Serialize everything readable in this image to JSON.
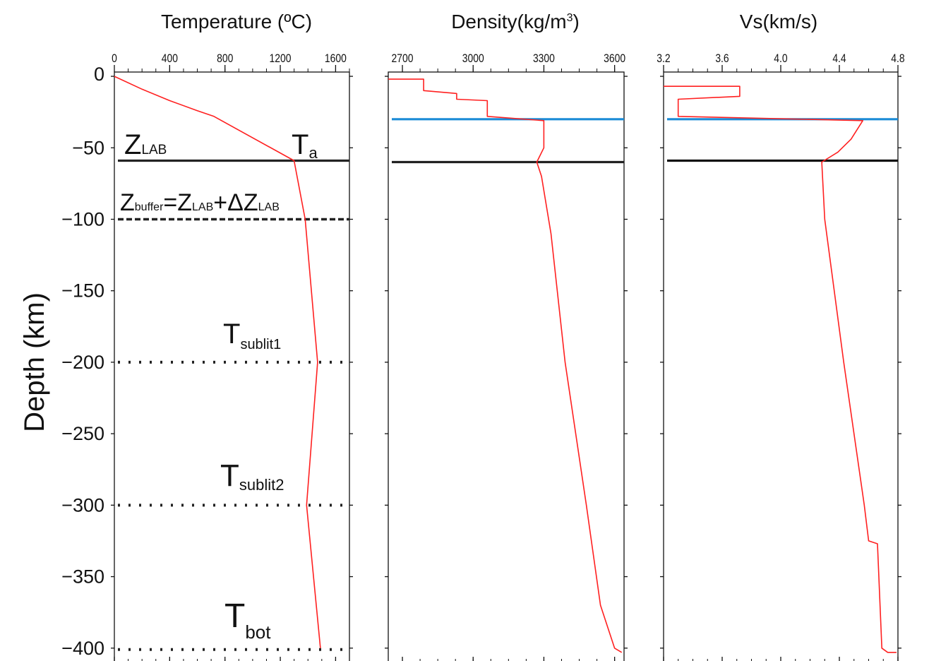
{
  "chart_data": [
    {
      "type": "line",
      "title": "Temperature (ºC)",
      "ylabel": "Depth (km)",
      "xlim": [
        0,
        1700
      ],
      "ylim": [
        -410,
        3
      ],
      "x_ticks": [
        "0",
        "400",
        "800",
        "1200",
        "1600"
      ],
      "y_ticks": [
        "0",
        "−50",
        "−100",
        "−150",
        "−200",
        "−250",
        "−300",
        "−350",
        "−400"
      ],
      "series": [
        {
          "color": "#ff2020",
          "points": [
            [
              0,
              0
            ],
            [
              200,
              -9
            ],
            [
              400,
              -17
            ],
            [
              600,
              -24
            ],
            [
              720,
              -28
            ],
            [
              1300,
              -59
            ],
            [
              1380,
              -100
            ],
            [
              1470,
              -200
            ],
            [
              1390,
              -300
            ],
            [
              1490,
              -400
            ]
          ]
        }
      ],
      "hlines": [
        {
          "y": -59,
          "style": "solid",
          "color": "#222222"
        },
        {
          "y": -100,
          "style": "dashed",
          "color": "#222222"
        },
        {
          "y": -200,
          "style": "dotted",
          "color": "#222222"
        },
        {
          "y": -300,
          "style": "dotted",
          "color": "#222222"
        },
        {
          "y": -401,
          "style": "dotted",
          "color": "#222222"
        }
      ],
      "annotations": [
        {
          "main": "Z",
          "sub": "LAB"
        },
        {
          "main": "T",
          "sub": "a"
        },
        {
          "main": "Z",
          "sub": "buffer",
          "rest": "=Z",
          "sub2": "LAB",
          "rest2": "+ΔZ",
          "sub3": "LAB"
        },
        {
          "main": "T",
          "sub": "sublit1"
        },
        {
          "main": "T",
          "sub": "sublit2"
        },
        {
          "main": "T",
          "sub": "bot"
        }
      ]
    },
    {
      "type": "line",
      "title": "Density(kg/m³)",
      "xlim": [
        2640,
        3640
      ],
      "ylim": [
        -410,
        3
      ],
      "x_ticks": [
        "2700",
        "3000",
        "3300",
        "3600"
      ],
      "series": [
        {
          "color": "#ff2020",
          "points": [
            [
              2640,
              -2
            ],
            [
              2790,
              -2
            ],
            [
              2790,
              -10
            ],
            [
              2930,
              -12
            ],
            [
              2930,
              -16
            ],
            [
              3060,
              -17
            ],
            [
              3060,
              -28
            ],
            [
              3300,
              -31
            ],
            [
              3300,
              -50
            ],
            [
              3270,
              -60
            ],
            [
              3290,
              -70
            ],
            [
              3330,
              -110
            ],
            [
              3390,
              -200
            ],
            [
              3480,
              -300
            ],
            [
              3540,
              -370
            ],
            [
              3600,
              -400
            ],
            [
              3630,
              -403
            ]
          ]
        }
      ],
      "hlines": [
        {
          "y": -30,
          "style": "solid",
          "color": "#1b8bd6"
        },
        {
          "y": -60,
          "style": "solid",
          "color": "#222222"
        }
      ]
    },
    {
      "type": "line",
      "title": "Vs(km/s)",
      "xlim": [
        3.2,
        4.8
      ],
      "ylim": [
        -410,
        3
      ],
      "x_ticks": [
        "3.2",
        "3.6",
        "4.0",
        "4.4",
        "4.8"
      ],
      "series": [
        {
          "color": "#ff2020",
          "points": [
            [
              3.2,
              -7
            ],
            [
              3.72,
              -7
            ],
            [
              3.72,
              -14
            ],
            [
              3.3,
              -16
            ],
            [
              3.3,
              -28
            ],
            [
              4.56,
              -31
            ],
            [
              4.48,
              -44
            ],
            [
              4.39,
              -53
            ],
            [
              4.28,
              -60
            ],
            [
              4.3,
              -100
            ],
            [
              4.43,
              -200
            ],
            [
              4.57,
              -300
            ],
            [
              4.6,
              -325
            ],
            [
              4.66,
              -327
            ],
            [
              4.69,
              -400
            ],
            [
              4.73,
              -403
            ],
            [
              4.79,
              -403
            ]
          ]
        }
      ],
      "hlines": [
        {
          "y": -30,
          "style": "solid",
          "color": "#1b8bd6"
        },
        {
          "y": -59,
          "style": "solid",
          "color": "#111111"
        }
      ]
    }
  ]
}
